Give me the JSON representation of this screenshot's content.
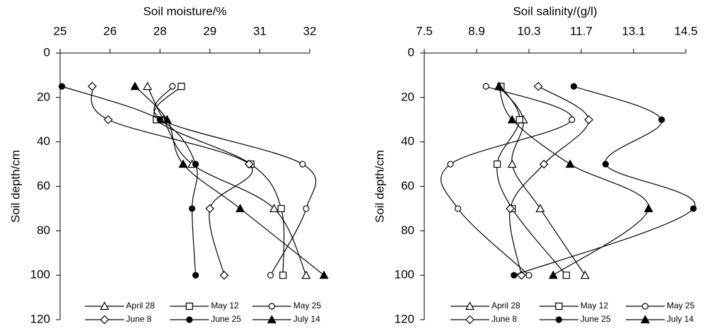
{
  "chart_data": [
    {
      "type": "line",
      "xlabel": "Soil moisture/%",
      "ylabel": "Soil depth/cm",
      "xaxis_position": "top",
      "y_inverted": true,
      "xlim": [
        25,
        32
      ],
      "xticks": [
        25,
        {
          "value": 26.4,
          "label": "26"
        },
        {
          "value": 27.8,
          "label": "28"
        },
        {
          "value": 29.2,
          "label": "29"
        },
        {
          "value": 30.6,
          "label": "31"
        },
        32
      ],
      "ylim": [
        0,
        120
      ],
      "yticks": [
        0,
        20,
        40,
        60,
        80,
        100,
        120
      ],
      "legend": "bottom",
      "series": [
        {
          "name": "April 28",
          "color": "#000000",
          "marker": "triangle",
          "filled": false,
          "y": [
            15,
            30,
            50,
            70,
            100
          ],
          "values": [
            27.45,
            27.9,
            28.7,
            31.0,
            31.9
          ]
        },
        {
          "name": "May 12",
          "color": "#000000",
          "marker": "square",
          "filled": false,
          "y": [
            15,
            30,
            50,
            70,
            100
          ],
          "values": [
            28.4,
            27.7,
            30.35,
            31.2,
            31.25
          ]
        },
        {
          "name": "May 25",
          "color": "#000000",
          "marker": "circle",
          "filled": false,
          "y": [
            15,
            30,
            50,
            70,
            100
          ],
          "values": [
            28.15,
            27.85,
            31.8,
            31.9,
            30.9
          ]
        },
        {
          "name": "June 8",
          "color": "#000000",
          "marker": "diamond",
          "filled": false,
          "y": [
            15,
            30,
            50,
            70,
            100
          ],
          "values": [
            25.9,
            26.35,
            30.3,
            29.2,
            29.6
          ]
        },
        {
          "name": "June 25",
          "color": "#000000",
          "marker": "circle",
          "filled": true,
          "y": [
            15,
            30,
            50,
            70,
            100
          ],
          "values": [
            25.05,
            27.8,
            28.8,
            28.7,
            28.8
          ]
        },
        {
          "name": "July 14",
          "color": "#000000",
          "marker": "triangle",
          "filled": true,
          "y": [
            15,
            30,
            50,
            70,
            100
          ],
          "values": [
            27.1,
            28.0,
            28.45,
            30.05,
            32.4
          ]
        }
      ]
    },
    {
      "type": "line",
      "xlabel": "Soil salinity/(g/l)",
      "ylabel": "Soil depth/cm",
      "xaxis_position": "top",
      "y_inverted": true,
      "xlim": [
        7.5,
        14.5
      ],
      "xticks": [
        7.5,
        8.9,
        10.3,
        11.7,
        13.1,
        14.5
      ],
      "ylim": [
        0,
        120
      ],
      "yticks": [
        0,
        20,
        40,
        60,
        80,
        100,
        120
      ],
      "legend": "bottom",
      "series": [
        {
          "name": "April 28",
          "color": "#000000",
          "marker": "triangle",
          "filled": false,
          "y": [
            15,
            30,
            50,
            70,
            100
          ],
          "values": [
            9.5,
            10.15,
            9.85,
            10.6,
            11.8
          ]
        },
        {
          "name": "May 12",
          "color": "#000000",
          "marker": "square",
          "filled": false,
          "y": [
            15,
            30,
            50,
            70,
            100
          ],
          "values": [
            9.55,
            10.05,
            9.45,
            9.85,
            11.3
          ]
        },
        {
          "name": "May 25",
          "color": "#000000",
          "marker": "circle",
          "filled": false,
          "y": [
            15,
            30,
            50,
            70,
            100
          ],
          "values": [
            9.15,
            11.45,
            8.2,
            8.4,
            10.3
          ]
        },
        {
          "name": "June 8",
          "color": "#000000",
          "marker": "diamond",
          "filled": false,
          "y": [
            15,
            30,
            50,
            70,
            100
          ],
          "values": [
            10.55,
            11.9,
            10.7,
            9.8,
            10.1
          ]
        },
        {
          "name": "June 25",
          "color": "#000000",
          "marker": "circle",
          "filled": true,
          "y": [
            15,
            30,
            50,
            70,
            100
          ],
          "values": [
            11.5,
            13.85,
            12.35,
            14.7,
            9.9
          ]
        },
        {
          "name": "July 14",
          "color": "#000000",
          "marker": "triangle",
          "filled": true,
          "y": [
            15,
            30,
            50,
            70,
            100
          ],
          "values": [
            9.5,
            9.85,
            11.4,
            13.5,
            10.95
          ]
        }
      ]
    }
  ]
}
